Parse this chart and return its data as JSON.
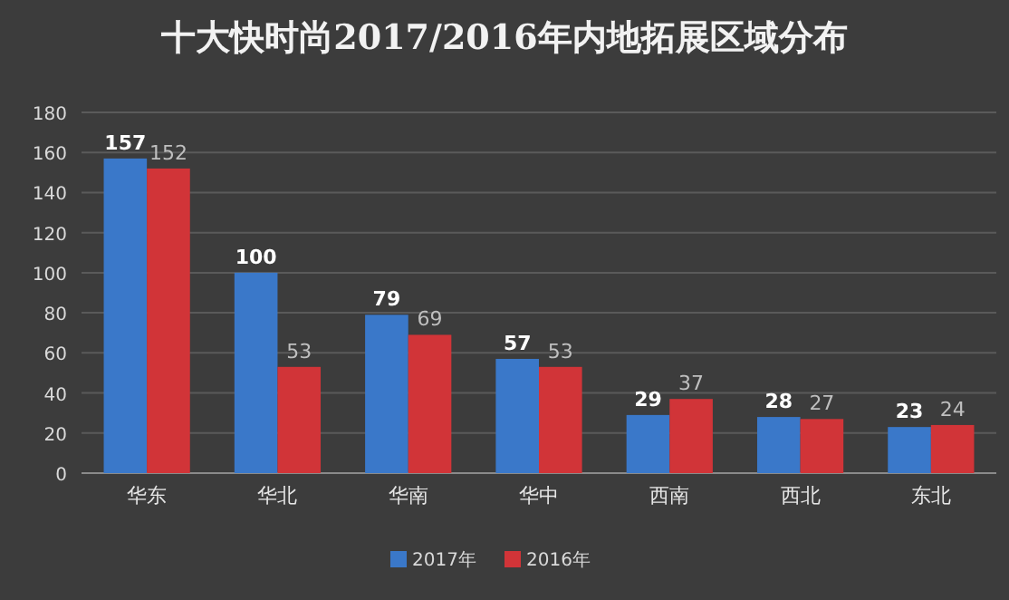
{
  "chart_data": {
    "type": "bar",
    "title": "十大快时尚2017/2016年内地拓展区域分布",
    "categories": [
      "华东",
      "华北",
      "华南",
      "华中",
      "西南",
      "西北",
      "东北"
    ],
    "series": [
      {
        "name": "2017年",
        "color": "#3a78c9",
        "values": [
          157,
          100,
          79,
          57,
          29,
          28,
          23
        ]
      },
      {
        "name": "2016年",
        "color": "#d13438",
        "values": [
          152,
          53,
          69,
          53,
          37,
          27,
          24
        ]
      }
    ],
    "ylim": [
      0,
      180
    ],
    "yticks": [
      0,
      20,
      40,
      60,
      80,
      100,
      120,
      140,
      160,
      180
    ],
    "grid": "y",
    "legend": "bottom",
    "data_labels": true
  }
}
